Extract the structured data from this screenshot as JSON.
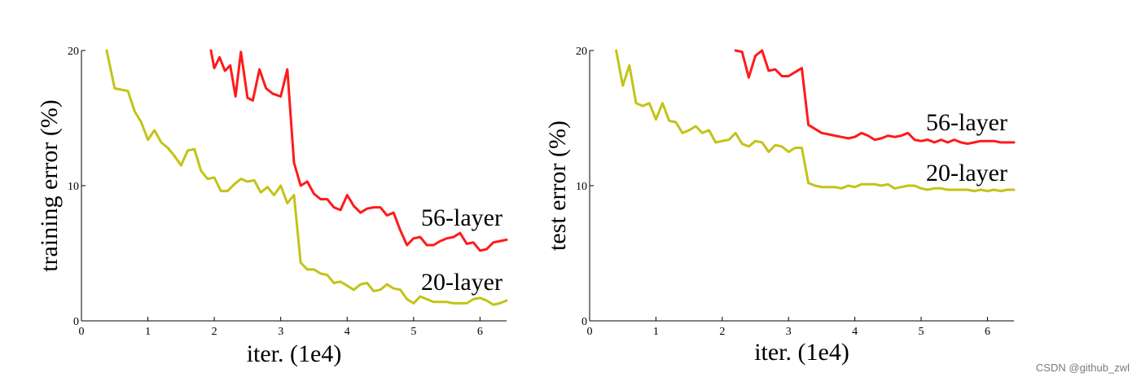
{
  "watermark": "CSDN @github_zwl",
  "chart_data": [
    {
      "type": "line",
      "title": "",
      "xlabel": "iter. (1e4)",
      "ylabel": "training error (%)",
      "xlim": [
        0,
        6.4
      ],
      "ylim": [
        0,
        20
      ],
      "xticks": [
        "0",
        "1",
        "2",
        "3",
        "4",
        "5",
        "6"
      ],
      "yticks": [
        "0",
        "10",
        "20"
      ],
      "grid": false,
      "series": [
        {
          "name": "56-layer",
          "color": "#ff1a1a",
          "x": [
            1.95,
            2.0,
            2.08,
            2.16,
            2.24,
            2.32,
            2.4,
            2.5,
            2.58,
            2.68,
            2.78,
            2.88,
            3.0,
            3.1,
            3.2,
            3.3,
            3.4,
            3.5,
            3.6,
            3.7,
            3.8,
            3.9,
            4.0,
            4.1,
            4.2,
            4.3,
            4.4,
            4.5,
            4.6,
            4.7,
            4.8,
            4.9,
            5.0,
            5.1,
            5.2,
            5.3,
            5.4,
            5.5,
            5.6,
            5.7,
            5.8,
            5.9,
            6.0,
            6.1,
            6.2,
            6.3,
            6.4
          ],
          "y": [
            20.0,
            18.7,
            19.5,
            18.5,
            18.9,
            16.6,
            19.9,
            16.5,
            16.3,
            18.6,
            17.2,
            16.8,
            16.6,
            18.6,
            11.7,
            10.0,
            10.3,
            9.4,
            9.0,
            9.0,
            8.4,
            8.2,
            9.3,
            8.5,
            8.0,
            8.3,
            8.4,
            8.4,
            7.8,
            8.0,
            6.7,
            5.6,
            6.1,
            6.2,
            5.6,
            5.6,
            5.9,
            6.1,
            6.2,
            6.5,
            5.7,
            5.8,
            5.2,
            5.3,
            5.8,
            5.9,
            6.0
          ]
        },
        {
          "name": "20-layer",
          "color": "#c3c318",
          "x": [
            0.38,
            0.5,
            0.6,
            0.7,
            0.8,
            0.9,
            1.0,
            1.1,
            1.2,
            1.3,
            1.4,
            1.5,
            1.6,
            1.7,
            1.8,
            1.9,
            2.0,
            2.1,
            2.2,
            2.3,
            2.4,
            2.5,
            2.6,
            2.7,
            2.8,
            2.9,
            3.0,
            3.1,
            3.2,
            3.3,
            3.4,
            3.5,
            3.6,
            3.7,
            3.8,
            3.9,
            4.0,
            4.1,
            4.2,
            4.3,
            4.4,
            4.5,
            4.6,
            4.7,
            4.8,
            4.9,
            5.0,
            5.1,
            5.2,
            5.3,
            5.4,
            5.5,
            5.6,
            5.7,
            5.8,
            5.9,
            6.0,
            6.1,
            6.2,
            6.3,
            6.4
          ],
          "y": [
            20.0,
            17.2,
            17.1,
            17.0,
            15.5,
            14.7,
            13.4,
            14.1,
            13.2,
            12.8,
            12.2,
            11.5,
            12.6,
            12.7,
            11.1,
            10.5,
            10.6,
            9.6,
            9.6,
            10.1,
            10.5,
            10.3,
            10.4,
            9.5,
            9.9,
            9.3,
            10.0,
            8.7,
            9.3,
            4.3,
            3.8,
            3.8,
            3.5,
            3.4,
            2.8,
            2.9,
            2.6,
            2.3,
            2.7,
            2.8,
            2.2,
            2.3,
            2.7,
            2.4,
            2.3,
            1.6,
            1.3,
            1.8,
            1.6,
            1.4,
            1.4,
            1.4,
            1.3,
            1.3,
            1.3,
            1.6,
            1.7,
            1.5,
            1.2,
            1.3,
            1.5
          ]
        }
      ],
      "series_labels": [
        "56-layer",
        "20-layer"
      ]
    },
    {
      "type": "line",
      "title": "",
      "xlabel": "iter. (1e4)",
      "ylabel": "test error (%)",
      "xlim": [
        0,
        6.4
      ],
      "ylim": [
        0,
        20
      ],
      "xticks": [
        "0",
        "1",
        "2",
        "3",
        "4",
        "5",
        "6"
      ],
      "yticks": [
        "0",
        "10",
        "20"
      ],
      "grid": false,
      "series": [
        {
          "name": "56-layer",
          "color": "#ff1a1a",
          "x": [
            2.2,
            2.3,
            2.4,
            2.5,
            2.6,
            2.7,
            2.8,
            2.9,
            3.0,
            3.1,
            3.2,
            3.3,
            3.4,
            3.5,
            3.6,
            3.7,
            3.8,
            3.9,
            4.0,
            4.1,
            4.2,
            4.3,
            4.4,
            4.5,
            4.6,
            4.7,
            4.8,
            4.9,
            5.0,
            5.1,
            5.2,
            5.3,
            5.4,
            5.5,
            5.6,
            5.7,
            5.8,
            5.9,
            6.0,
            6.1,
            6.2,
            6.3,
            6.4
          ],
          "y": [
            20.0,
            19.9,
            18.0,
            19.6,
            20.0,
            18.5,
            18.6,
            18.1,
            18.1,
            18.4,
            18.7,
            14.5,
            14.2,
            13.9,
            13.8,
            13.7,
            13.6,
            13.5,
            13.6,
            13.9,
            13.7,
            13.4,
            13.5,
            13.7,
            13.6,
            13.7,
            13.9,
            13.4,
            13.3,
            13.4,
            13.2,
            13.4,
            13.2,
            13.4,
            13.2,
            13.1,
            13.2,
            13.3,
            13.3,
            13.3,
            13.2,
            13.2,
            13.2
          ]
        },
        {
          "name": "20-layer",
          "color": "#c3c318",
          "x": [
            0.4,
            0.5,
            0.6,
            0.7,
            0.8,
            0.9,
            1.0,
            1.1,
            1.2,
            1.3,
            1.4,
            1.5,
            1.6,
            1.7,
            1.8,
            1.9,
            2.0,
            2.1,
            2.2,
            2.3,
            2.4,
            2.5,
            2.6,
            2.7,
            2.8,
            2.9,
            3.0,
            3.1,
            3.2,
            3.3,
            3.4,
            3.5,
            3.6,
            3.7,
            3.8,
            3.9,
            4.0,
            4.1,
            4.2,
            4.3,
            4.4,
            4.5,
            4.6,
            4.7,
            4.8,
            4.9,
            5.0,
            5.1,
            5.2,
            5.3,
            5.4,
            5.5,
            5.6,
            5.7,
            5.8,
            5.9,
            6.0,
            6.1,
            6.2,
            6.3,
            6.4
          ],
          "y": [
            20.0,
            17.4,
            18.9,
            16.1,
            15.9,
            16.1,
            14.9,
            16.1,
            14.8,
            14.7,
            13.9,
            14.1,
            14.4,
            13.9,
            14.1,
            13.2,
            13.3,
            13.4,
            13.9,
            13.1,
            12.9,
            13.3,
            13.2,
            12.5,
            13.0,
            12.9,
            12.5,
            12.8,
            12.8,
            10.2,
            10.0,
            9.9,
            9.9,
            9.9,
            9.8,
            10.0,
            9.9,
            10.1,
            10.1,
            10.1,
            10.0,
            10.1,
            9.8,
            9.9,
            10.0,
            10.0,
            9.8,
            9.7,
            9.8,
            9.8,
            9.7,
            9.7,
            9.7,
            9.7,
            9.6,
            9.7,
            9.6,
            9.7,
            9.6,
            9.7,
            9.7
          ]
        }
      ],
      "series_labels": [
        "56-layer",
        "20-layer"
      ]
    }
  ]
}
